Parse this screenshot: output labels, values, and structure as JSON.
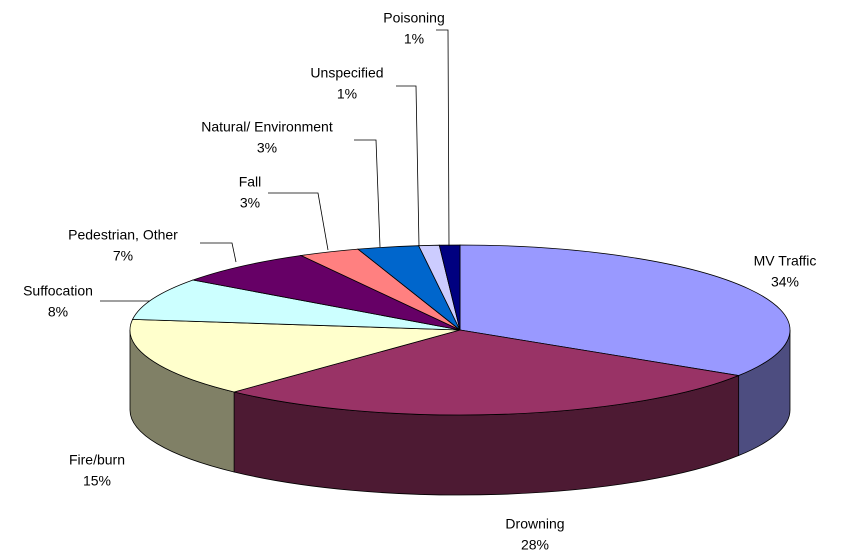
{
  "chart_data": {
    "type": "pie",
    "categories": [
      "MV Traffic",
      "Drowning",
      "Fire/burn",
      "Suffocation",
      "Pedestrian, Other",
      "Fall",
      "Natural/ Environment",
      "Unspecified",
      "Poisoning"
    ],
    "values": [
      34,
      28,
      15,
      8,
      7,
      3,
      3,
      1,
      1
    ],
    "value_labels": [
      "34%",
      "28%",
      "15%",
      "8%",
      "7%",
      "3%",
      "3%",
      "1%",
      "1%"
    ],
    "colors": [
      "#9999ff",
      "#993366",
      "#ffffcc",
      "#ccffff",
      "#660066",
      "#ff8080",
      "#0066cc",
      "#ccccff",
      "#000080"
    ]
  }
}
